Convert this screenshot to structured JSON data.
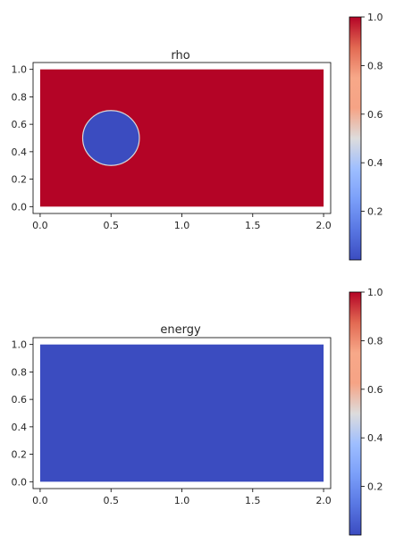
{
  "chart_data": [
    {
      "type": "heatmap",
      "title": "rho",
      "xlabel": "",
      "ylabel": "",
      "xlim": [
        -0.05,
        2.05
      ],
      "ylim": [
        -0.05,
        1.05
      ],
      "x_ticks": [
        0.0,
        0.5,
        1.0,
        1.5,
        2.0
      ],
      "x_tick_labels": [
        "0.0",
        "0.5",
        "1.0",
        "1.5",
        "2.0"
      ],
      "y_ticks": [
        0.0,
        0.2,
        0.4,
        0.6,
        0.8,
        1.0
      ],
      "y_tick_labels": [
        "0.0",
        "0.2",
        "0.4",
        "0.6",
        "0.8",
        "1.0"
      ],
      "domain": {
        "x": [
          0.0,
          2.0
        ],
        "y": [
          0.0,
          1.0
        ]
      },
      "background_value": 1.0,
      "features": [
        {
          "shape": "circle",
          "center": [
            0.5,
            0.5
          ],
          "radius": 0.2,
          "value": 0.0
        }
      ],
      "colormap": "coolwarm",
      "colorbar": {
        "range": [
          0.0,
          1.0
        ],
        "ticks": [
          0.2,
          0.4,
          0.6,
          0.8,
          1.0
        ],
        "tick_labels": [
          "0.2",
          "0.4",
          "0.6",
          "0.8",
          "1.0"
        ]
      },
      "grid": false
    },
    {
      "type": "heatmap",
      "title": "energy",
      "xlabel": "",
      "ylabel": "",
      "xlim": [
        -0.05,
        2.05
      ],
      "ylim": [
        -0.05,
        1.05
      ],
      "x_ticks": [
        0.0,
        0.5,
        1.0,
        1.5,
        2.0
      ],
      "x_tick_labels": [
        "0.0",
        "0.5",
        "1.0",
        "1.5",
        "2.0"
      ],
      "y_ticks": [
        0.0,
        0.2,
        0.4,
        0.6,
        0.8,
        1.0
      ],
      "y_tick_labels": [
        "0.0",
        "0.2",
        "0.4",
        "0.6",
        "0.8",
        "1.0"
      ],
      "domain": {
        "x": [
          0.0,
          2.0
        ],
        "y": [
          0.0,
          1.0
        ]
      },
      "background_value": 0.0,
      "features": [],
      "colormap": "coolwarm",
      "colorbar": {
        "range": [
          0.0,
          1.0
        ],
        "ticks": [
          0.2,
          0.4,
          0.6,
          0.8,
          1.0
        ],
        "tick_labels": [
          "0.2",
          "0.4",
          "0.6",
          "0.8",
          "1.0"
        ]
      },
      "grid": false
    }
  ]
}
